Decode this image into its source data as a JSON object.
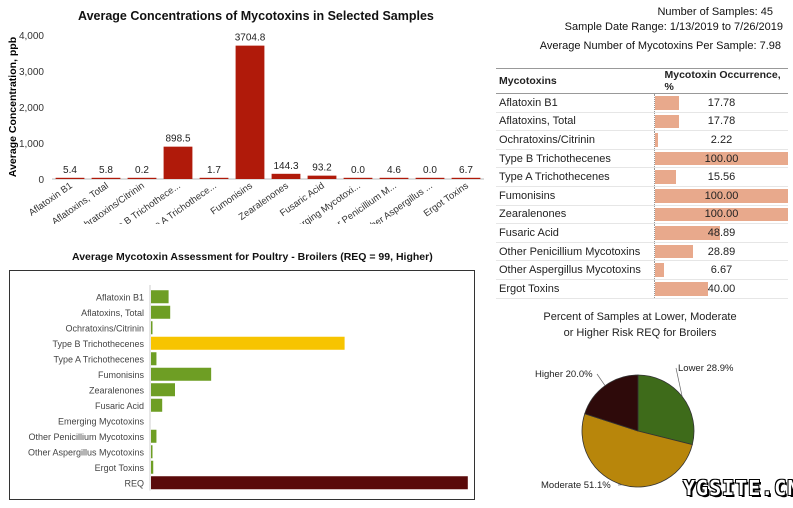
{
  "summary": {
    "samples": "Number of Samples: 45",
    "date_range": "Sample Date Range: 1/13/2019 to 7/26/2019",
    "avg_count": "Average Number of Mycotoxins Per Sample: 7.98"
  },
  "table": {
    "col1": "Mycotoxins",
    "col2": "Mycotoxin Occurrence, %",
    "rows": [
      {
        "name": "Aflatoxin B1",
        "value": 17.78,
        "label": "17.78"
      },
      {
        "name": "Aflatoxins, Total",
        "value": 17.78,
        "label": "17.78"
      },
      {
        "name": "Ochratoxins/Citrinin",
        "value": 2.22,
        "label": "2.22"
      },
      {
        "name": "Type B Trichothecenes",
        "value": 100,
        "label": "100.00"
      },
      {
        "name": "Type A Trichothecenes",
        "value": 15.56,
        "label": "15.56"
      },
      {
        "name": "Fumonisins",
        "value": 100,
        "label": "100.00"
      },
      {
        "name": "Zearalenones",
        "value": 100,
        "label": "100.00"
      },
      {
        "name": "Fusaric Acid",
        "value": 48.89,
        "label": "48.89"
      },
      {
        "name": "Other Penicillium Mycotoxins",
        "value": 28.89,
        "label": "28.89"
      },
      {
        "name": "Other Aspergillus Mycotoxins",
        "value": 6.67,
        "label": "6.67"
      },
      {
        "name": "Ergot Toxins",
        "value": 40,
        "label": "40.00"
      }
    ]
  },
  "watermark": "YGSITE.CN",
  "chart_data": [
    {
      "type": "bar",
      "title": "Average Concentrations of Mycotoxins in Selected Samples",
      "ylabel": "Average Concentration, ppb",
      "xlabel": "",
      "ylim": [
        0,
        4000
      ],
      "yticks": [
        "0",
        "1,000",
        "2,000",
        "3,000",
        "4,000"
      ],
      "ytick_values": [
        0,
        1000,
        2000,
        3000,
        4000
      ],
      "grid": false,
      "categories": [
        "Aflatoxin B1",
        "Aflatoxins, Total",
        "Ochratoxins/Citrinin",
        "Type B Trichothece...",
        "Type A Trichothece...",
        "Fumonisins",
        "Zearalenones",
        "Fusaric Acid",
        "Emerging Mycotoxi...",
        "Other Penicillium M...",
        "Other Aspergillus ...",
        "Ergot Toxins"
      ],
      "values": [
        5.4,
        5.8,
        0.2,
        898.5,
        1.7,
        3704.8,
        144.3,
        93.2,
        0.0,
        4.6,
        0.0,
        6.7
      ],
      "labels": [
        "5.4",
        "5.8",
        "0.2",
        "898.5",
        "1.7",
        "3704.8",
        "144.3",
        "93.2",
        "0.0",
        "4.6",
        "0.0",
        "6.7"
      ],
      "color": "#b01a0a"
    },
    {
      "type": "bar",
      "orientation": "horizontal",
      "title": "Average Mycotoxin Assessment for Poultry - Broilers (REQ = 99, Higher)",
      "categories": [
        "Aflatoxin B1",
        "Aflatoxins, Total",
        "Ochratoxins/Citrinin",
        "Type B Trichothecenes",
        "Type A Trichothecenes",
        "Fumonisins",
        "Zearalenones",
        "Fusaric Acid",
        "Emerging Mycotoxins",
        "Other Penicillium Mycotoxins",
        "Other Aspergillus Mycotoxins",
        "Ergot Toxins",
        "REQ"
      ],
      "values": [
        5.5,
        6,
        0.2,
        60.5,
        1.7,
        18.8,
        7.5,
        3.5,
        0,
        1.7,
        0.1,
        0.7,
        99
      ],
      "colors": [
        "#6e9e24",
        "#6e9e24",
        "#6e9e24",
        "#f7c400",
        "#6e9e24",
        "#6e9e24",
        "#6e9e24",
        "#6e9e24",
        "#6e9e24",
        "#6e9e24",
        "#6e9e24",
        "#6e9e24",
        "#5a0a0a"
      ],
      "xlim": [
        0,
        100
      ],
      "grid": false
    },
    {
      "type": "pie",
      "title": "Percent of Samples at Lower, Moderate or Higher Risk REQ for Broilers",
      "title_line1": "Percent of Samples at Lower, Moderate",
      "title_line2": "or Higher Risk REQ for Broilers",
      "slices": [
        {
          "name": "Lower",
          "value": 28.9,
          "label": "Lower 28.9%",
          "color": "#3e6b1a"
        },
        {
          "name": "Moderate",
          "value": 51.1,
          "label": "Moderate 51.1%",
          "color": "#b8860b"
        },
        {
          "name": "Higher",
          "value": 20.0,
          "label": "Higher 20.0%",
          "color": "#2e0a0a"
        }
      ]
    }
  ]
}
